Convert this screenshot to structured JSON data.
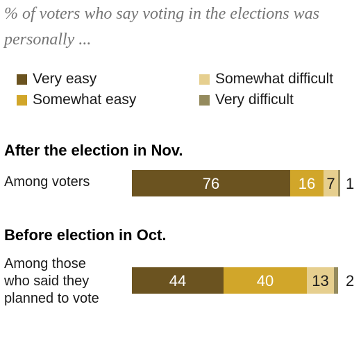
{
  "chart_data": {
    "type": "bar",
    "stacked": true,
    "orientation": "horizontal",
    "title": "",
    "subtitle": "% of voters who say voting in the elections was personally ...",
    "legend_position": "top",
    "series": [
      {
        "name": "Very easy",
        "color": "#6b5320",
        "label_color": "#ffffff"
      },
      {
        "name": "Somewhat easy",
        "color": "#d1a62a",
        "label_color": "#ffffff"
      },
      {
        "name": "Somewhat difficult",
        "color": "#e6cf8f",
        "label_color": "#1a1a1a"
      },
      {
        "name": "Very difficult",
        "color": "#948a5d",
        "label_color": "#1a1a1a"
      }
    ],
    "groups": [
      {
        "title": "After the election in Nov.",
        "rows": [
          {
            "label": "Among voters",
            "values": [
              76,
              16,
              7,
              1
            ]
          }
        ]
      },
      {
        "title": "Before election in Oct.",
        "rows": [
          {
            "label": "Among those\nwho said they\nplanned to vote",
            "values": [
              44,
              40,
              13,
              2
            ]
          }
        ]
      }
    ],
    "xlim": [
      0,
      100
    ],
    "grid": false
  }
}
